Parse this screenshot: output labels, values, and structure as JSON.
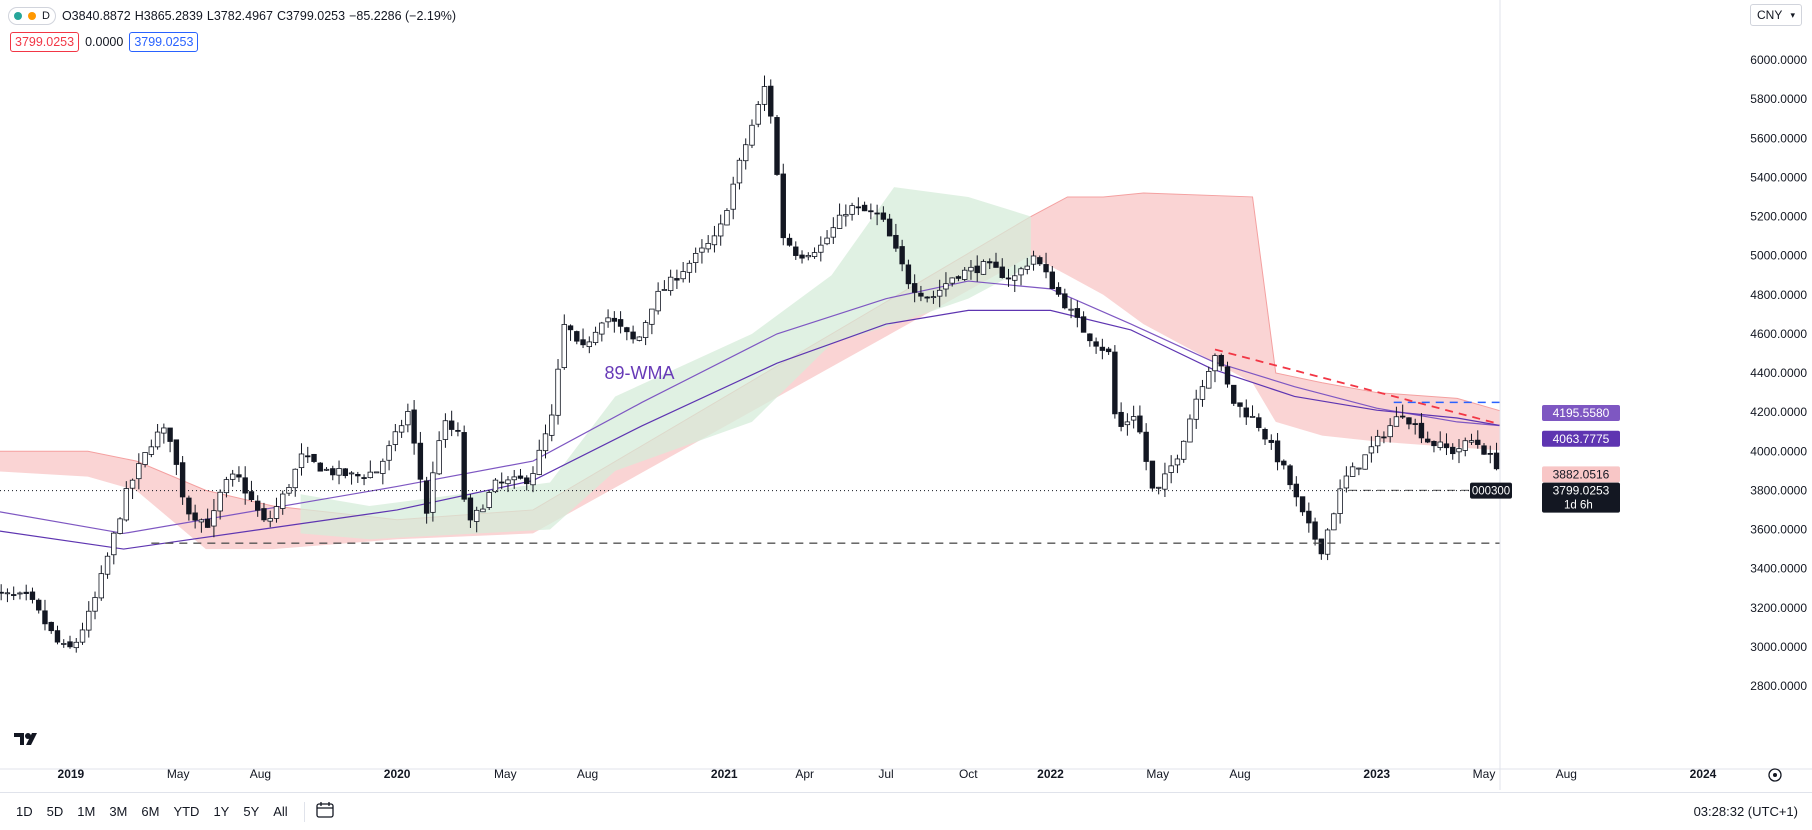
{
  "header": {
    "interval": "D",
    "ohlc": {
      "open": "O3840.8872",
      "high": "H3865.2839",
      "low": "L3782.4967",
      "close": "C3799.0253",
      "change": "−85.2286 (−2.19%)"
    },
    "values": {
      "a": "3799.0253",
      "b": "0.0000",
      "c": "3799.0253"
    },
    "currency": "CNY",
    "colors": {
      "a": "#f23645",
      "c": "#2962ff"
    }
  },
  "bottom_bar": {
    "timeframes": [
      "1D",
      "5D",
      "1M",
      "3M",
      "6M",
      "YTD",
      "1Y",
      "5Y",
      "All"
    ],
    "clock": "03:28:32 (UTC+1)"
  },
  "chart_data": {
    "type": "candlestick",
    "symbol": "000300",
    "ylim": [
      2700,
      6150
    ],
    "y_ticks": [
      "6000.0000",
      "5800.0000",
      "5600.0000",
      "5400.0000",
      "5200.0000",
      "5000.0000",
      "4800.0000",
      "4600.0000",
      "4400.0000",
      "4200.0000",
      "4000.0000",
      "3800.0000",
      "3600.0000",
      "3400.0000",
      "3200.0000",
      "3000.0000",
      "2800.0000"
    ],
    "x_ticks": [
      {
        "label": "2019",
        "d": "2019-01-01",
        "bold": true
      },
      {
        "label": "May",
        "d": "2019-05-01"
      },
      {
        "label": "Aug",
        "d": "2019-08-01"
      },
      {
        "label": "2020",
        "d": "2020-01-01",
        "bold": true
      },
      {
        "label": "May",
        "d": "2020-05-01"
      },
      {
        "label": "Aug",
        "d": "2020-08-01"
      },
      {
        "label": "2021",
        "d": "2021-01-01",
        "bold": true
      },
      {
        "label": "Apr",
        "d": "2021-04-01"
      },
      {
        "label": "Jul",
        "d": "2021-07-01"
      },
      {
        "label": "Oct",
        "d": "2021-10-01"
      },
      {
        "label": "2022",
        "d": "2022-01-01",
        "bold": true
      },
      {
        "label": "May",
        "d": "2022-05-01"
      },
      {
        "label": "Aug",
        "d": "2022-08-01"
      },
      {
        "label": "2023",
        "d": "2023-01-01",
        "bold": true
      },
      {
        "label": "May",
        "d": "2023-05-01"
      },
      {
        "label": "Aug",
        "d": "2023-08-01"
      },
      {
        "label": "2024",
        "d": "2024-01-01",
        "bold": true
      }
    ],
    "price_path": [
      [
        "2018-10-01",
        3270
      ],
      [
        "2018-11-15",
        3250
      ],
      [
        "2018-12-20",
        3000
      ],
      [
        "2019-01-03",
        2990
      ],
      [
        "2019-01-25",
        3200
      ],
      [
        "2019-02-15",
        3520
      ],
      [
        "2019-03-05",
        3800
      ],
      [
        "2019-04-05",
        4080
      ],
      [
        "2019-04-20",
        4110
      ],
      [
        "2019-05-10",
        3700
      ],
      [
        "2019-06-06",
        3620
      ],
      [
        "2019-06-20",
        3820
      ],
      [
        "2019-07-05",
        3880
      ],
      [
        "2019-08-07",
        3620
      ],
      [
        "2019-08-30",
        3800
      ],
      [
        "2019-09-16",
        3970
      ],
      [
        "2019-10-15",
        3900
      ],
      [
        "2019-11-15",
        3870
      ],
      [
        "2019-12-10",
        3900
      ],
      [
        "2020-01-13",
        4200
      ],
      [
        "2020-02-03",
        3690
      ],
      [
        "2020-02-20",
        4150
      ],
      [
        "2020-03-10",
        4080
      ],
      [
        "2020-03-19",
        3600
      ],
      [
        "2020-04-20",
        3830
      ],
      [
        "2020-05-29",
        3860
      ],
      [
        "2020-06-22",
        4170
      ],
      [
        "2020-07-07",
        4670
      ],
      [
        "2020-07-24",
        4500
      ],
      [
        "2020-08-20",
        4700
      ],
      [
        "2020-09-25",
        4550
      ],
      [
        "2020-10-15",
        4780
      ],
      [
        "2020-11-20",
        4950
      ],
      [
        "2020-12-25",
        5100
      ],
      [
        "2021-01-20",
        5500
      ],
      [
        "2021-02-18",
        5900
      ],
      [
        "2021-03-08",
        5100
      ],
      [
        "2021-03-25",
        5000
      ],
      [
        "2021-04-20",
        5050
      ],
      [
        "2021-05-20",
        5250
      ],
      [
        "2021-06-25",
        5200
      ],
      [
        "2021-07-28",
        4850
      ],
      [
        "2021-08-20",
        4780
      ],
      [
        "2021-09-15",
        4900
      ],
      [
        "2021-10-20",
        4950
      ],
      [
        "2021-11-20",
        4880
      ],
      [
        "2021-12-13",
        5000
      ],
      [
        "2022-01-10",
        4800
      ],
      [
        "2022-02-10",
        4600
      ],
      [
        "2022-03-07",
        4500
      ],
      [
        "2022-03-16",
        4100
      ],
      [
        "2022-04-06",
        4200
      ],
      [
        "2022-04-27",
        3760
      ],
      [
        "2022-05-25",
        4000
      ],
      [
        "2022-06-15",
        4300
      ],
      [
        "2022-07-04",
        4500
      ],
      [
        "2022-07-25",
        4250
      ],
      [
        "2022-08-20",
        4150
      ],
      [
        "2022-09-20",
        3900
      ],
      [
        "2022-10-12",
        3650
      ],
      [
        "2022-10-31",
        3500
      ],
      [
        "2022-11-25",
        3850
      ],
      [
        "2022-12-15",
        3950
      ],
      [
        "2023-01-10",
        4100
      ],
      [
        "2023-01-30",
        4200
      ],
      [
        "2023-02-28",
        4050
      ],
      [
        "2023-03-27",
        4000
      ],
      [
        "2023-04-20",
        4060
      ],
      [
        "2023-05-31",
        3850
      ],
      [
        "2023-06-19",
        3970
      ],
      [
        "2023-07-10",
        3850
      ],
      [
        "2023-07-31",
        4050
      ],
      [
        "2023-08-14",
        3830
      ],
      [
        "2023-08-18",
        3799
      ]
    ],
    "wma_fast": [
      [
        "2018-10-01",
        3700
      ],
      [
        "2019-03-01",
        3580
      ],
      [
        "2019-08-01",
        3700
      ],
      [
        "2020-01-01",
        3820
      ],
      [
        "2020-06-01",
        3950
      ],
      [
        "2020-10-01",
        4250
      ],
      [
        "2021-03-01",
        4600
      ],
      [
        "2021-07-01",
        4780
      ],
      [
        "2021-10-01",
        4870
      ],
      [
        "2022-01-01",
        4830
      ],
      [
        "2022-04-01",
        4650
      ],
      [
        "2022-07-01",
        4460
      ],
      [
        "2022-10-01",
        4330
      ],
      [
        "2023-01-01",
        4220
      ],
      [
        "2023-04-01",
        4150
      ],
      [
        "2023-06-15",
        4120
      ],
      [
        "2023-08-14",
        4063.7775
      ]
    ],
    "wma_slow": [
      [
        "2018-10-01",
        3600
      ],
      [
        "2019-03-01",
        3500
      ],
      [
        "2019-08-01",
        3600
      ],
      [
        "2020-01-01",
        3700
      ],
      [
        "2020-06-01",
        3850
      ],
      [
        "2020-10-01",
        4130
      ],
      [
        "2021-03-01",
        4450
      ],
      [
        "2021-07-01",
        4650
      ],
      [
        "2021-10-01",
        4720
      ],
      [
        "2022-01-01",
        4720
      ],
      [
        "2022-04-01",
        4620
      ],
      [
        "2022-07-01",
        4420
      ],
      [
        "2022-10-01",
        4280
      ],
      [
        "2023-01-01",
        4210
      ],
      [
        "2023-04-01",
        4170
      ],
      [
        "2023-06-15",
        4110
      ],
      [
        "2023-08-14",
        4010
      ]
    ],
    "cloud_red_upper": [
      [
        "2018-10-01",
        4000
      ],
      [
        "2019-01-20",
        4000
      ],
      [
        "2019-03-15",
        3950
      ],
      [
        "2019-06-01",
        3800
      ],
      [
        "2019-08-15",
        3720
      ],
      [
        "2020-01-01",
        3650
      ],
      [
        "2020-06-01",
        3700
      ],
      [
        "2021-12-10",
        5200
      ],
      [
        "2022-01-20",
        5300
      ],
      [
        "2022-03-01",
        5300
      ],
      [
        "2022-04-15",
        5320
      ],
      [
        "2022-08-15",
        5300
      ],
      [
        "2022-09-10",
        4400
      ],
      [
        "2022-11-01",
        4350
      ],
      [
        "2023-01-01",
        4300
      ],
      [
        "2023-04-01",
        4270
      ],
      [
        "2023-07-01",
        4150
      ],
      [
        "2023-10-01",
        4020
      ],
      [
        "2023-12-20",
        4030
      ],
      [
        "2024-02-01",
        3880
      ]
    ],
    "cloud_red_lower": [
      [
        "2018-10-01",
        3900
      ],
      [
        "2019-01-20",
        3870
      ],
      [
        "2019-03-15",
        3800
      ],
      [
        "2019-06-01",
        3500
      ],
      [
        "2019-08-15",
        3500
      ],
      [
        "2020-01-01",
        3550
      ],
      [
        "2020-06-01",
        3580
      ],
      [
        "2021-12-10",
        5000
      ],
      [
        "2022-01-20",
        4900
      ],
      [
        "2022-03-01",
        4800
      ],
      [
        "2022-04-15",
        4650
      ],
      [
        "2022-08-15",
        4350
      ],
      [
        "2022-09-10",
        4150
      ],
      [
        "2022-11-01",
        4080
      ],
      [
        "2023-01-01",
        4050
      ],
      [
        "2023-04-01",
        4020
      ],
      [
        "2023-07-01",
        3990
      ],
      [
        "2023-10-01",
        3990
      ],
      [
        "2023-12-20",
        3960
      ],
      [
        "2024-02-01",
        3860
      ]
    ],
    "cloud_green_upper": [
      [
        "2019-09-15",
        3780
      ],
      [
        "2019-12-01",
        3720
      ],
      [
        "2020-06-20",
        3840
      ],
      [
        "2020-09-01",
        4280
      ],
      [
        "2021-02-01",
        4600
      ],
      [
        "2021-05-01",
        4900
      ],
      [
        "2021-07-10",
        5350
      ],
      [
        "2021-10-01",
        5300
      ],
      [
        "2021-12-10",
        5200
      ]
    ],
    "cloud_green_lower": [
      [
        "2019-09-15",
        3580
      ],
      [
        "2019-12-01",
        3550
      ],
      [
        "2020-06-20",
        3600
      ],
      [
        "2020-09-01",
        3900
      ],
      [
        "2021-02-01",
        4150
      ],
      [
        "2021-05-01",
        4550
      ],
      [
        "2021-07-10",
        4650
      ],
      [
        "2021-10-01",
        4780
      ],
      [
        "2021-12-10",
        4950
      ]
    ],
    "support_level": 3530,
    "support_range": [
      "2019-04-01",
      "2023-12-31"
    ],
    "resistance_blue": {
      "value": 4250,
      "from": "2023-01-20",
      "to": "2023-09-01"
    },
    "trendline_red": {
      "from": [
        "2022-07-04",
        4520
      ],
      "to": [
        "2023-10-15",
        3960
      ]
    },
    "recent_low_line": {
      "value": 3800,
      "from": "2022-12-01",
      "to": "2023-09-01"
    },
    "current_price_line": 3799.0253,
    "annotation": {
      "text": "89-WMA",
      "d": "2020-08-20",
      "v": 4370,
      "color": "#673ab7"
    },
    "arrow": {
      "from": [
        "2023-10-20",
        4350
      ],
      "to": [
        "2023-08-14",
        4075
      ]
    },
    "price_labels": [
      {
        "text": "4195.5580",
        "v": 4195.558,
        "bg": "#7e57c2",
        "fg": "#ffffff"
      },
      {
        "text": "4063.7775",
        "v": 4063.7775,
        "bg": "#5e35b1",
        "fg": "#ffffff"
      },
      {
        "text": "3882.0516",
        "v": 3882.0516,
        "bg": "#f8c6c6",
        "fg": "#131722"
      },
      {
        "text": "3799.0253",
        "v": 3799.0253,
        "bg": "#131722",
        "fg": "#ffffff"
      }
    ],
    "current_label_sub": "1d 6h",
    "colors": {
      "candle": "#131722",
      "wma_fast": "#7e57c2",
      "wma_slow": "#5e35b1",
      "cloud_red": "#f8c6c6",
      "cloud_green": "#d6ecd9",
      "trend": "#f23645",
      "resist": "#2962ff"
    }
  }
}
